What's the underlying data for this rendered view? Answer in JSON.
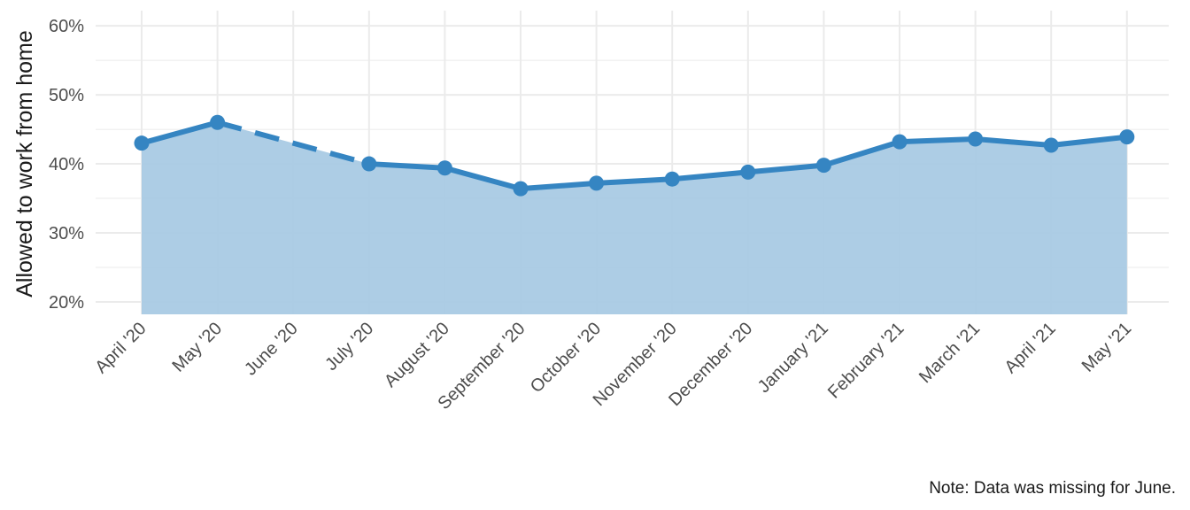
{
  "chart_data": {
    "type": "line",
    "categories": [
      "April '20",
      "May '20",
      "June '20",
      "July '20",
      "August '20",
      "September '20",
      "October '20",
      "November '20",
      "December '20",
      "January '21",
      "February '21",
      "March '21",
      "April '21",
      "May '21"
    ],
    "series": [
      {
        "values": [
          43.0,
          46.0,
          null,
          40.0,
          39.4,
          36.4,
          37.2,
          37.8,
          38.8,
          39.8,
          43.2,
          43.6,
          42.7,
          43.9
        ]
      }
    ],
    "ylabel": "Allowed to work from home",
    "xlabel": "",
    "ylim": [
      18.2,
      62.2
    ],
    "yticks": [
      20,
      30,
      40,
      50,
      60
    ],
    "ytick_labels": [
      "20%",
      "30%",
      "40%",
      "50%",
      "60%"
    ],
    "grid": true,
    "missing_segment_style": "dashed",
    "note": "Note: Data was missing for June.",
    "colors": {
      "line": "#3585c2",
      "area": "#a9cae4",
      "grid": "#ebebeb"
    }
  }
}
